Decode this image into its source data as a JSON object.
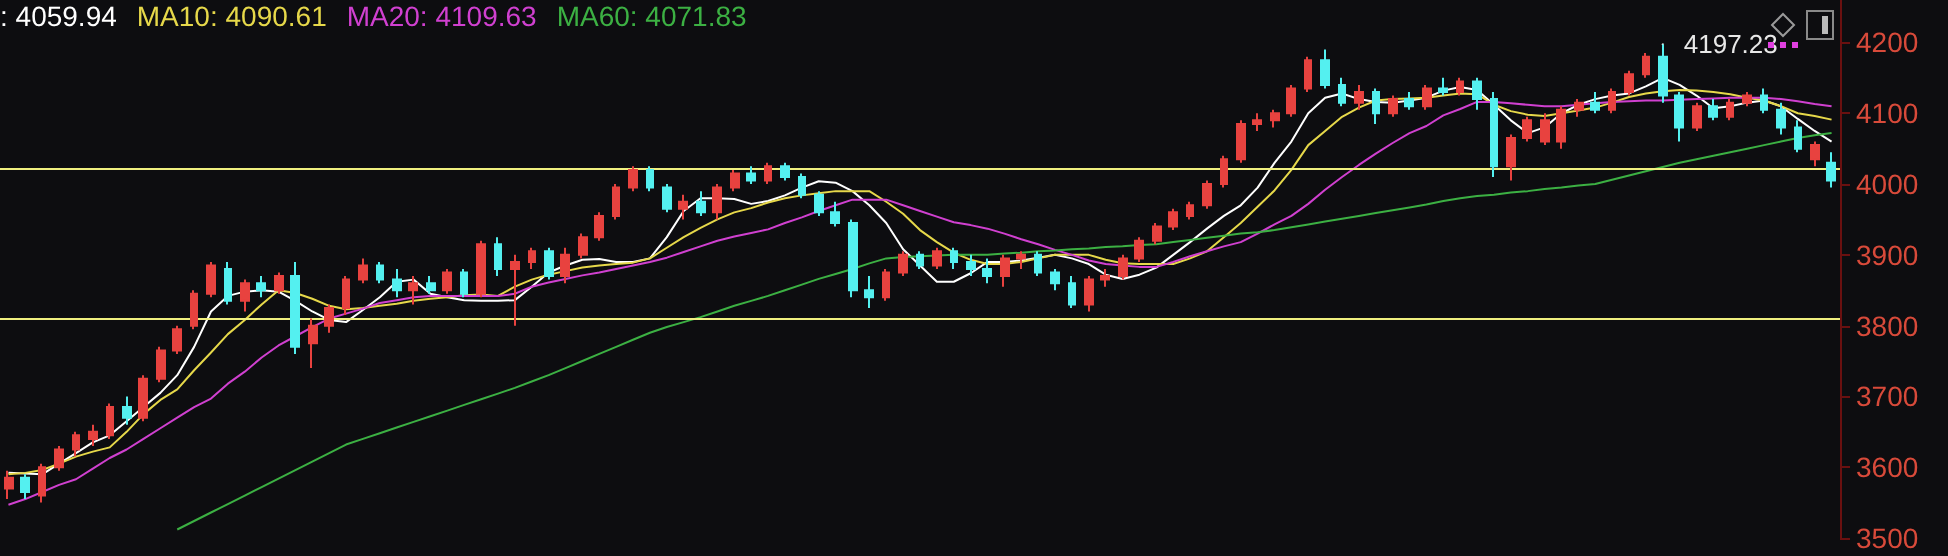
{
  "chart_data": {
    "type": "candlestick",
    "categories": [
      null,
      null,
      null,
      null,
      null,
      null,
      null,
      null,
      null,
      null,
      null,
      null,
      null,
      null,
      null,
      null,
      null,
      null,
      null,
      null,
      null,
      null,
      null,
      null,
      null,
      null,
      null,
      null,
      null,
      null,
      null,
      null,
      null,
      null,
      null,
      null,
      null,
      null,
      null,
      null,
      null,
      null,
      null,
      null,
      null,
      null,
      null,
      null,
      null,
      null,
      null,
      null,
      null,
      null,
      null,
      null,
      null,
      null,
      null,
      null,
      null,
      null,
      null,
      null,
      null,
      null,
      null,
      null,
      null,
      null,
      null,
      null,
      null,
      null,
      null,
      null,
      null,
      null,
      null,
      null,
      null,
      null,
      null,
      null,
      null,
      null,
      null,
      null,
      null,
      null,
      null,
      null,
      null,
      null,
      null,
      null,
      null,
      null,
      null,
      null,
      null,
      null,
      null,
      null,
      null,
      null,
      null,
      null,
      null
    ],
    "ohlc": [
      [
        3570,
        3595,
        3555,
        3585
      ],
      [
        3585,
        3590,
        3555,
        3565
      ],
      [
        3560,
        3605,
        3550,
        3600
      ],
      [
        3600,
        3630,
        3595,
        3625
      ],
      [
        3625,
        3650,
        3615,
        3645
      ],
      [
        3640,
        3660,
        3630,
        3650
      ],
      [
        3645,
        3690,
        3640,
        3685
      ],
      [
        3685,
        3700,
        3660,
        3670
      ],
      [
        3670,
        3730,
        3665,
        3725
      ],
      [
        3725,
        3770,
        3720,
        3765
      ],
      [
        3765,
        3800,
        3760,
        3795
      ],
      [
        3800,
        3850,
        3795,
        3845
      ],
      [
        3845,
        3890,
        3840,
        3885
      ],
      [
        3880,
        3890,
        3830,
        3835
      ],
      [
        3835,
        3865,
        3820,
        3860
      ],
      [
        3860,
        3870,
        3840,
        3850
      ],
      [
        3850,
        3875,
        3845,
        3870
      ],
      [
        3870,
        3890,
        3760,
        3770
      ],
      [
        3775,
        3810,
        3740,
        3800
      ],
      [
        3800,
        3830,
        3790,
        3825
      ],
      [
        3825,
        3870,
        3815,
        3865
      ],
      [
        3865,
        3895,
        3860,
        3885
      ],
      [
        3885,
        3890,
        3860,
        3865
      ],
      [
        3865,
        3880,
        3840,
        3850
      ],
      [
        3850,
        3870,
        3830,
        3860
      ],
      [
        3860,
        3870,
        3845,
        3850
      ],
      [
        3850,
        3880,
        3845,
        3875
      ],
      [
        3875,
        3880,
        3840,
        3845
      ],
      [
        3845,
        3920,
        3840,
        3915
      ],
      [
        3915,
        3925,
        3870,
        3880
      ],
      [
        3880,
        3900,
        3800,
        3890
      ],
      [
        3890,
        3910,
        3880,
        3905
      ],
      [
        3905,
        3910,
        3865,
        3870
      ],
      [
        3870,
        3910,
        3860,
        3900
      ],
      [
        3900,
        3930,
        3895,
        3925
      ],
      [
        3925,
        3960,
        3920,
        3955
      ],
      [
        3955,
        4000,
        3950,
        3995
      ],
      [
        3995,
        4025,
        3990,
        4020
      ],
      [
        4020,
        4025,
        3990,
        3995
      ],
      [
        3995,
        4000,
        3960,
        3965
      ],
      [
        3965,
        3985,
        3950,
        3975
      ],
      [
        3975,
        3990,
        3955,
        3960
      ],
      [
        3960,
        4000,
        3950,
        3995
      ],
      [
        3995,
        4020,
        3990,
        4015
      ],
      [
        4015,
        4025,
        4000,
        4005
      ],
      [
        4005,
        4030,
        4000,
        4025
      ],
      [
        4025,
        4030,
        4005,
        4010
      ],
      [
        4010,
        4015,
        3980,
        3985
      ],
      [
        3985,
        3990,
        3955,
        3960
      ],
      [
        3960,
        3975,
        3940,
        3945
      ],
      [
        3945,
        3950,
        3840,
        3850
      ],
      [
        3850,
        3870,
        3825,
        3840
      ],
      [
        3840,
        3880,
        3835,
        3875
      ],
      [
        3875,
        3905,
        3870,
        3900
      ],
      [
        3900,
        3905,
        3880,
        3885
      ],
      [
        3885,
        3910,
        3880,
        3905
      ],
      [
        3905,
        3910,
        3880,
        3890
      ],
      [
        3890,
        3900,
        3870,
        3880
      ],
      [
        3880,
        3895,
        3860,
        3870
      ],
      [
        3870,
        3900,
        3855,
        3895
      ],
      [
        3895,
        3905,
        3880,
        3900
      ],
      [
        3900,
        3905,
        3870,
        3875
      ],
      [
        3875,
        3880,
        3850,
        3860
      ],
      [
        3860,
        3870,
        3825,
        3830
      ],
      [
        3830,
        3870,
        3820,
        3865
      ],
      [
        3865,
        3880,
        3855,
        3870
      ],
      [
        3870,
        3900,
        3865,
        3895
      ],
      [
        3895,
        3925,
        3890,
        3920
      ],
      [
        3920,
        3945,
        3915,
        3940
      ],
      [
        3940,
        3965,
        3935,
        3960
      ],
      [
        3955,
        3975,
        3950,
        3970
      ],
      [
        3970,
        4005,
        3965,
        4000
      ],
      [
        4000,
        4040,
        3995,
        4035
      ],
      [
        4035,
        4090,
        4030,
        4085
      ],
      [
        4085,
        4100,
        4075,
        4090
      ],
      [
        4090,
        4105,
        4080,
        4100
      ],
      [
        4100,
        4140,
        4095,
        4135
      ],
      [
        4135,
        4180,
        4130,
        4175
      ],
      [
        4175,
        4190,
        4135,
        4140
      ],
      [
        4140,
        4150,
        4110,
        4115
      ],
      [
        4115,
        4140,
        4105,
        4130
      ],
      [
        4130,
        4135,
        4085,
        4100
      ],
      [
        4100,
        4125,
        4095,
        4120
      ],
      [
        4120,
        4130,
        4105,
        4110
      ],
      [
        4110,
        4140,
        4105,
        4135
      ],
      [
        4135,
        4150,
        4125,
        4130
      ],
      [
        4130,
        4150,
        4125,
        4145
      ],
      [
        4145,
        4150,
        4105,
        4120
      ],
      [
        4120,
        4130,
        4010,
        4025
      ],
      [
        4025,
        4070,
        4005,
        4065
      ],
      [
        4065,
        4095,
        4060,
        4090
      ],
      [
        4060,
        4100,
        4055,
        4090
      ],
      [
        4060,
        4110,
        4050,
        4105
      ],
      [
        4105,
        4120,
        4095,
        4115
      ],
      [
        4115,
        4130,
        4100,
        4105
      ],
      [
        4105,
        4135,
        4100,
        4130
      ],
      [
        4130,
        4160,
        4125,
        4155
      ],
      [
        4155,
        4185,
        4150,
        4180
      ],
      [
        4180,
        4197.23,
        4115,
        4125
      ],
      [
        4125,
        4130,
        4060,
        4080
      ],
      [
        4080,
        4115,
        4075,
        4110
      ],
      [
        4110,
        4120,
        4090,
        4095
      ],
      [
        4095,
        4120,
        4090,
        4115
      ],
      [
        4115,
        4130,
        4110,
        4125
      ],
      [
        4125,
        4135,
        4100,
        4105
      ],
      [
        4105,
        4115,
        4070,
        4080
      ],
      [
        4080,
        4090,
        4045,
        4050
      ],
      [
        4035,
        4060,
        4025,
        4055
      ],
      [
        4030,
        4045,
        3995,
        4005
      ]
    ],
    "series": [
      {
        "type": "line",
        "color": "#ffffff",
        "values": [
          3592,
          3591,
          3590,
          3605,
          3620,
          3635,
          3645,
          3665,
          3685,
          3705,
          3730,
          3770,
          3820,
          3842,
          3848,
          3850,
          3848,
          3835,
          3820,
          3808,
          3805,
          3822,
          3840,
          3862,
          3865,
          3845,
          3840,
          3836,
          3835,
          3835,
          3836,
          3855,
          3875,
          3885,
          3893,
          3894,
          3890,
          3890,
          3895,
          3925,
          3962,
          3980,
          3980,
          3979,
          3972,
          3976,
          3984,
          3995,
          4004,
          4002,
          3990,
          3970,
          3945,
          3908,
          3885,
          3862,
          3862,
          3874,
          3890,
          3890,
          3892,
          3896,
          3900,
          3895,
          3887,
          3872,
          3866,
          3872,
          3882,
          3900,
          3918,
          3937,
          3955,
          3970,
          3995,
          4030,
          4060,
          4100,
          4122,
          4128,
          4120,
          4116,
          4115,
          4118,
          4122,
          4132,
          4137,
          4133,
          4112,
          4090,
          4072,
          4080,
          4100,
          4112,
          4120,
          4125,
          4128,
          4138,
          4150,
          4140,
          4125,
          4107,
          4110,
          4115,
          4118,
          4110,
          4092,
          4075,
          4060
        ]
      },
      {
        "type": "line",
        "color": "#e6d84a",
        "values": [
          3590,
          3592,
          3596,
          3605,
          3615,
          3622,
          3628,
          3650,
          3675,
          3695,
          3710,
          3737,
          3762,
          3788,
          3808,
          3830,
          3850,
          3846,
          3838,
          3828,
          3823,
          3825,
          3828,
          3831,
          3835,
          3838,
          3840,
          3843,
          3844,
          3842,
          3855,
          3865,
          3872,
          3877,
          3882,
          3885,
          3887,
          3889,
          3895,
          3910,
          3925,
          3938,
          3950,
          3960,
          3966,
          3974,
          3980,
          3984,
          3987,
          3990,
          3990,
          3990,
          3975,
          3958,
          3935,
          3918,
          3903,
          3893,
          3887,
          3887,
          3890,
          3895,
          3900,
          3900,
          3900,
          3893,
          3888,
          3887,
          3887,
          3887,
          3895,
          3905,
          3925,
          3945,
          3968,
          3991,
          4020,
          4055,
          4075,
          4095,
          4108,
          4118,
          4120,
          4121,
          4122,
          4125,
          4128,
          4127,
          4112,
          4103,
          4098,
          4096,
          4100,
          4104,
          4108,
          4115,
          4123,
          4128,
          4131,
          4133,
          4132,
          4130,
          4127,
          4122,
          4118,
          4110,
          4100,
          4096,
          4091
        ]
      },
      {
        "type": "line",
        "color": "#d040d0",
        "values": [
          3547,
          3555,
          3565,
          3575,
          3583,
          3598,
          3613,
          3625,
          3640,
          3655,
          3670,
          3685,
          3697,
          3718,
          3735,
          3755,
          3772,
          3785,
          3798,
          3810,
          3817,
          3824,
          3832,
          3836,
          3840,
          3842,
          3842,
          3842,
          3842,
          3842,
          3845,
          3855,
          3861,
          3866,
          3871,
          3875,
          3880,
          3885,
          3890,
          3896,
          3904,
          3912,
          3920,
          3926,
          3931,
          3936,
          3945,
          3953,
          3962,
          3970,
          3978,
          3978,
          3978,
          3970,
          3962,
          3954,
          3946,
          3942,
          3937,
          3930,
          3922,
          3915,
          3907,
          3900,
          3892,
          3887,
          3885,
          3883,
          3883,
          3890,
          3898,
          3905,
          3912,
          3918,
          3930,
          3943,
          3955,
          3972,
          3992,
          4010,
          4027,
          4043,
          4058,
          4072,
          4082,
          4097,
          4106,
          4116,
          4116,
          4114,
          4112,
          4110,
          4110,
          4112,
          4114,
          4116,
          4117,
          4118,
          4118,
          4119,
          4120,
          4121,
          4122,
          4122,
          4122,
          4120,
          4117,
          4113,
          4110
        ]
      },
      {
        "type": "line",
        "color": "#3cb043",
        "values": [
          null,
          null,
          null,
          null,
          null,
          null,
          null,
          null,
          null,
          null,
          3512,
          3524,
          3536,
          3548,
          3560,
          3572,
          3584,
          3596,
          3608,
          3620,
          3632,
          3640,
          3648,
          3656,
          3664,
          3672,
          3680,
          3688,
          3696,
          3704,
          3712,
          3721,
          3730,
          3740,
          3750,
          3760,
          3770,
          3780,
          3790,
          3798,
          3805,
          3812,
          3820,
          3828,
          3835,
          3842,
          3850,
          3858,
          3866,
          3873,
          3880,
          3888,
          3895,
          3897,
          3898,
          3899,
          3900,
          3900,
          3900,
          3902,
          3903,
          3905,
          3906,
          3908,
          3909,
          3911,
          3912,
          3914,
          3915,
          3918,
          3921,
          3924,
          3927,
          3930,
          3932,
          3935,
          3939,
          3943,
          3947,
          3951,
          3955,
          3959,
          3963,
          3967,
          3971,
          3976,
          3980,
          3983,
          3985,
          3988,
          3990,
          3993,
          3995,
          3998,
          4000,
          4006,
          4012,
          4018,
          4024,
          4030,
          4035,
          4040,
          4045,
          4050,
          4055,
          4060,
          4065,
          4069,
          4072
        ]
      }
    ],
    "ylim": [
      3500,
      4260
    ],
    "yticks": [
      3500,
      3600,
      3700,
      3800,
      3900,
      4000,
      4100,
      4200
    ],
    "ref_lines": [
      {
        "axis": "y",
        "value": 4023,
        "color": "#f0f080"
      },
      {
        "axis": "y",
        "value": 3810,
        "color": "#f0f080"
      }
    ],
    "annotations": [
      ": 4059.94",
      "MA10: 4090.61",
      "MA20: 4109.63",
      "MA60: 4071.83",
      "4197.23"
    ],
    "grid": false,
    "tick_labels": "y"
  }
}
